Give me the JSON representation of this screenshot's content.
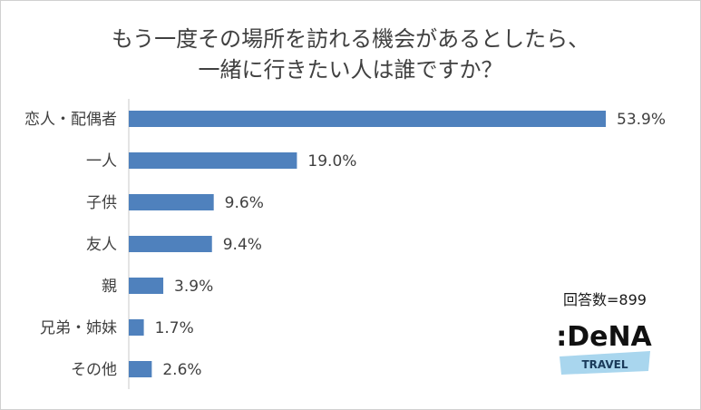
{
  "title": {
    "line1": "もう一度その場所を訪れる機会があるとしたら、",
    "line2": "一緒に行きたい人は誰ですか？"
  },
  "response_count": "回答数=899",
  "logo": {
    "brand": ":DeNA",
    "sub": "TRAVEL"
  },
  "colors": {
    "bar": "#4f81bd",
    "text": "#404040",
    "axis": "#c8c8c8",
    "logo_band": "#a9d6ee"
  },
  "chart_data": {
    "type": "bar",
    "orientation": "horizontal",
    "categories": [
      "恋人・配偶者",
      "一人",
      "子供",
      "友人",
      "親",
      "兄弟・姉妹",
      "その他"
    ],
    "values": [
      53.9,
      19.0,
      9.6,
      9.4,
      3.9,
      1.7,
      2.6
    ],
    "value_labels": [
      "53.9%",
      "19.0%",
      "9.6%",
      "9.4%",
      "3.9%",
      "1.7%",
      "2.6%"
    ],
    "xlim": [
      0,
      53.9
    ],
    "grid": false,
    "legend": "none"
  }
}
